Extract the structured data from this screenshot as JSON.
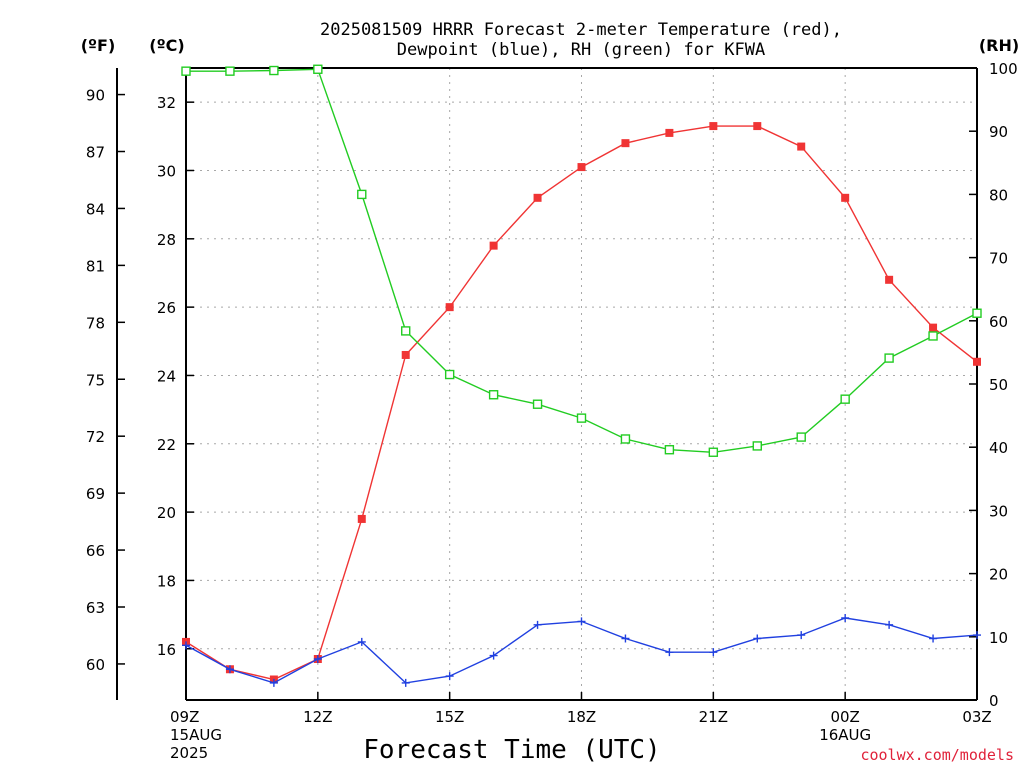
{
  "title": {
    "line1": "2025081509 HRRR Forecast 2-meter Temperature (red),",
    "line2": "Dewpoint (blue), RH (green) for KFWA"
  },
  "units": {
    "fahrenheit": "(ºF)",
    "celsius": "(ºC)",
    "rh": "(RH)"
  },
  "credit": "coolwx.com/models",
  "colors": {
    "temperature": "#f03434",
    "dewpoint": "#2040e0",
    "rh": "#22cc22",
    "credit": "#e0223a"
  },
  "chart_data": {
    "type": "line",
    "title": "2025081509 HRRR Forecast 2-meter Temperature (red), Dewpoint (blue), RH (green) for KFWA",
    "xlabel": "Forecast Time (UTC)",
    "x": [
      0,
      1,
      2,
      3,
      4,
      5,
      6,
      7,
      8,
      9,
      10,
      11,
      12,
      13,
      14,
      15,
      16,
      17,
      18
    ],
    "x_ticks": [
      {
        "at": 0,
        "lines": [
          "09Z",
          "15AUG",
          "2025"
        ]
      },
      {
        "at": 3,
        "lines": [
          "12Z"
        ]
      },
      {
        "at": 6,
        "lines": [
          "15Z"
        ]
      },
      {
        "at": 9,
        "lines": [
          "18Z"
        ]
      },
      {
        "at": 12,
        "lines": [
          "21Z"
        ]
      },
      {
        "at": 15,
        "lines": [
          "00Z",
          "16AUG"
        ]
      },
      {
        "at": 18,
        "lines": [
          "03Z"
        ]
      }
    ],
    "xlim": [
      0,
      18
    ],
    "left_axis_celsius": {
      "label": "(ºC)",
      "range": [
        14.5,
        33
      ],
      "ticks": [
        16,
        18,
        20,
        22,
        24,
        26,
        28,
        30,
        32
      ]
    },
    "left_axis_fahrenheit": {
      "label": "(ºF)",
      "ticks": [
        60,
        63,
        66,
        69,
        72,
        75,
        78,
        81,
        84,
        87,
        90
      ]
    },
    "right_axis_rh": {
      "label": "(RH)",
      "range": [
        0,
        100
      ],
      "ticks": [
        0,
        10,
        20,
        30,
        40,
        50,
        60,
        70,
        80,
        90,
        100
      ]
    },
    "series": [
      {
        "name": "Temperature",
        "axis": "celsius",
        "marker": "filled-square",
        "values": [
          16.2,
          15.4,
          15.1,
          15.7,
          19.8,
          24.6,
          26.0,
          27.8,
          29.2,
          30.1,
          30.8,
          31.1,
          31.3,
          31.3,
          30.7,
          29.2,
          26.8,
          25.4,
          24.4
        ]
      },
      {
        "name": "Dewpoint",
        "axis": "celsius",
        "marker": "plus",
        "values": [
          16.1,
          15.4,
          15.0,
          15.7,
          16.2,
          15.0,
          15.2,
          15.8,
          16.7,
          16.8,
          16.3,
          15.9,
          15.9,
          16.3,
          16.4,
          16.9,
          16.7,
          16.3,
          16.4
        ]
      },
      {
        "name": "RH",
        "axis": "rh",
        "marker": "open-square",
        "values": [
          99.5,
          99.5,
          99.6,
          99.8,
          80.0,
          58.4,
          51.5,
          48.3,
          46.8,
          44.6,
          41.3,
          39.6,
          39.2,
          40.2,
          41.6,
          47.6,
          54.1,
          57.6,
          61.2
        ]
      }
    ],
    "grid": true
  }
}
